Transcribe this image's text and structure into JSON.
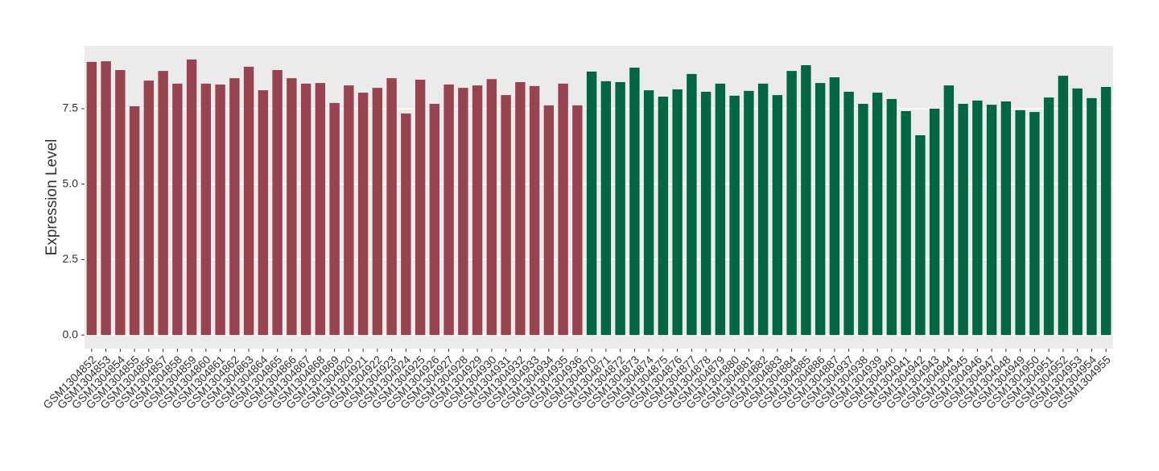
{
  "chart_data": {
    "type": "bar",
    "y_label": "Expression Level",
    "categories": [
      "GSM1304852",
      "GSM1304853",
      "GSM1304854",
      "GSM1304855",
      "GSM1304856",
      "GSM1304857",
      "GSM1304858",
      "GSM1304859",
      "GSM1304860",
      "GSM1304861",
      "GSM1304862",
      "GSM1304863",
      "GSM1304864",
      "GSM1304865",
      "GSM1304866",
      "GSM1304867",
      "GSM1304868",
      "GSM1304869",
      "GSM1304920",
      "GSM1304921",
      "GSM1304922",
      "GSM1304923",
      "GSM1304924",
      "GSM1304925",
      "GSM1304926",
      "GSM1304927",
      "GSM1304928",
      "GSM1304929",
      "GSM1304930",
      "GSM1304931",
      "GSM1304932",
      "GSM1304933",
      "GSM1304934",
      "GSM1304935",
      "GSM1304936",
      "GSM1304870",
      "GSM1304871",
      "GSM1304872",
      "GSM1304873",
      "GSM1304874",
      "GSM1304875",
      "GSM1304876",
      "GSM1304877",
      "GSM1304878",
      "GSM1304879",
      "GSM1304880",
      "GSM1304881",
      "GSM1304882",
      "GSM1304883",
      "GSM1304884",
      "GSM1304885",
      "GSM1304886",
      "GSM1304887",
      "GSM1304937",
      "GSM1304938",
      "GSM1304939",
      "GSM1304940",
      "GSM1304941",
      "GSM1304942",
      "GSM1304943",
      "GSM1304944",
      "GSM1304945",
      "GSM1304946",
      "GSM1304947",
      "GSM1304948",
      "GSM1304949",
      "GSM1304950",
      "GSM1304951",
      "GSM1304952",
      "GSM1304953",
      "GSM1304954",
      "GSM1304955"
    ],
    "series": [
      {
        "color": "#974350",
        "values": [
          9.05,
          9.07,
          8.78,
          7.58,
          8.43,
          8.75,
          8.33,
          9.13,
          8.33,
          8.3,
          8.51,
          8.89,
          8.11,
          8.78,
          8.51,
          8.33,
          8.35,
          7.69,
          8.27,
          8.03,
          8.19,
          8.51,
          7.34,
          8.46,
          7.66,
          8.3,
          8.19,
          8.27,
          8.48,
          7.95,
          8.38,
          8.25,
          7.61,
          8.33,
          7.61,
          null,
          null,
          null,
          null,
          null,
          null,
          null,
          null,
          null,
          null,
          null,
          null,
          null,
          null,
          null,
          null,
          null,
          null,
          null,
          null,
          null,
          null,
          null,
          null,
          null,
          null,
          null,
          null,
          null,
          null,
          null,
          null,
          null,
          null,
          null,
          null,
          null
        ]
      },
      {
        "color": "#006643",
        "values": [
          null,
          null,
          null,
          null,
          null,
          null,
          null,
          null,
          null,
          null,
          null,
          null,
          null,
          null,
          null,
          null,
          null,
          null,
          null,
          null,
          null,
          null,
          null,
          null,
          null,
          null,
          null,
          null,
          null,
          null,
          null,
          null,
          null,
          null,
          null,
          8.73,
          8.41,
          8.38,
          8.86,
          8.11,
          7.9,
          8.14,
          8.65,
          8.06,
          8.33,
          7.93,
          8.09,
          8.33,
          7.95,
          8.75,
          8.94,
          8.35,
          8.54,
          8.06,
          7.66,
          8.03,
          7.82,
          7.42,
          6.62,
          7.5,
          8.27,
          7.66,
          7.77,
          7.63,
          7.74,
          7.45,
          7.39,
          7.87,
          8.59,
          8.17,
          7.85,
          8.22
        ]
      }
    ],
    "ylim": [
      -0.45,
      9.58
    ],
    "yticks": [
      {
        "value": 0,
        "label": "0.0"
      },
      2.5,
      {
        "value": 5,
        "label": "5.0"
      },
      7.5
    ],
    "grid": true
  }
}
